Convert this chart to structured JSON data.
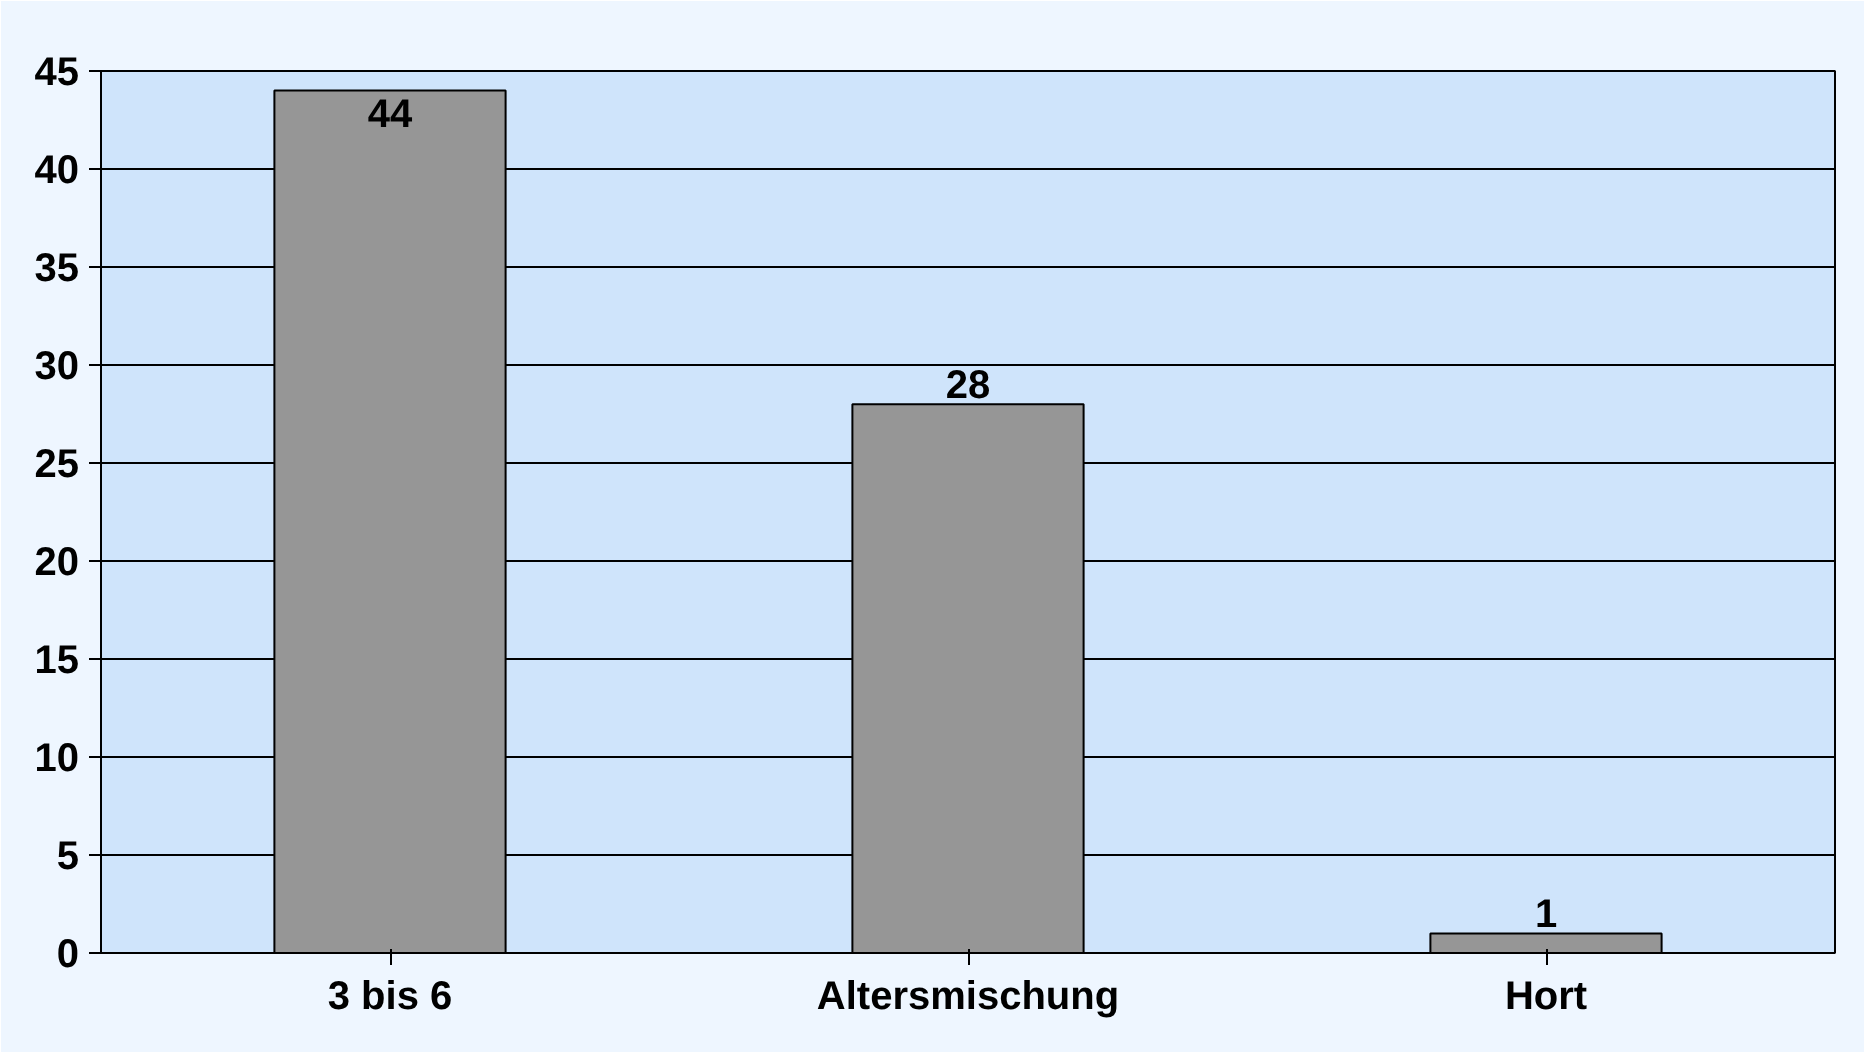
{
  "chart_data": {
    "type": "bar",
    "categories": [
      "3 bis 6",
      "Altersmischung",
      "Hort"
    ],
    "values": [
      44,
      28,
      1
    ],
    "color": "#969696",
    "ylim": [
      0,
      45
    ],
    "yticks": [
      0,
      5,
      10,
      15,
      20,
      25,
      30,
      35,
      40,
      45
    ],
    "grid": "y",
    "data_labels": true
  }
}
